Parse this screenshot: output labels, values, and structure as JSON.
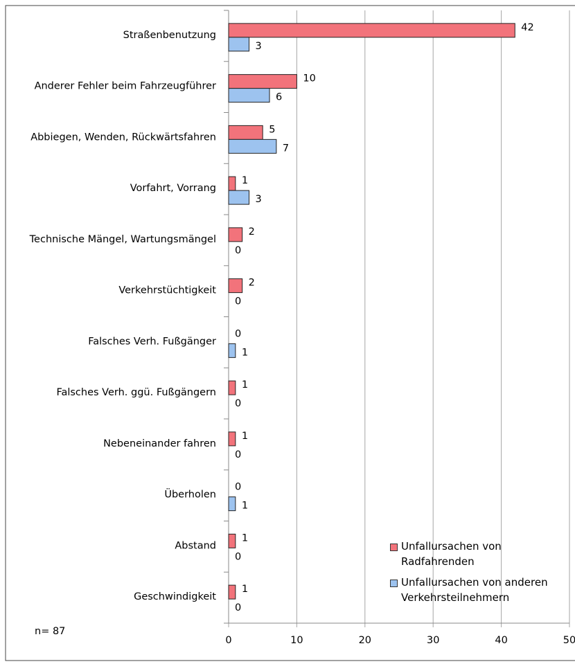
{
  "chart_data": {
    "type": "hbar",
    "annotation": "n= 87",
    "categories": [
      "Straßenbenutzung",
      "Anderer Fehler beim Fahrzeugführer",
      "Abbiegen, Wenden, Rückwärtsfahren",
      "Vorfahrt, Vorrang",
      "Technische Mängel, Wartungsmängel",
      "Verkehrstüchtigkeit",
      "Falsches Verh. Fußgänger",
      "Falsches Verh. ggü. Fußgängern",
      "Nebeneinander fahren",
      "Überholen",
      "Abstand",
      "Geschwindigkeit"
    ],
    "series": [
      {
        "name": "Unfallursachen von Radfahrenden",
        "color": "#f2737b",
        "values": [
          42,
          10,
          5,
          1,
          2,
          2,
          0,
          1,
          1,
          0,
          1,
          1
        ]
      },
      {
        "name": "Unfallursachen von anderen Verkehrsteilnehmern",
        "color": "#9dc3ef",
        "values": [
          3,
          6,
          7,
          3,
          0,
          0,
          1,
          0,
          0,
          1,
          0,
          0
        ]
      }
    ],
    "xlim": [
      0,
      50
    ],
    "xticks": [
      0,
      10,
      20,
      30,
      40,
      50
    ],
    "grid": true,
    "legend": "lower right"
  }
}
